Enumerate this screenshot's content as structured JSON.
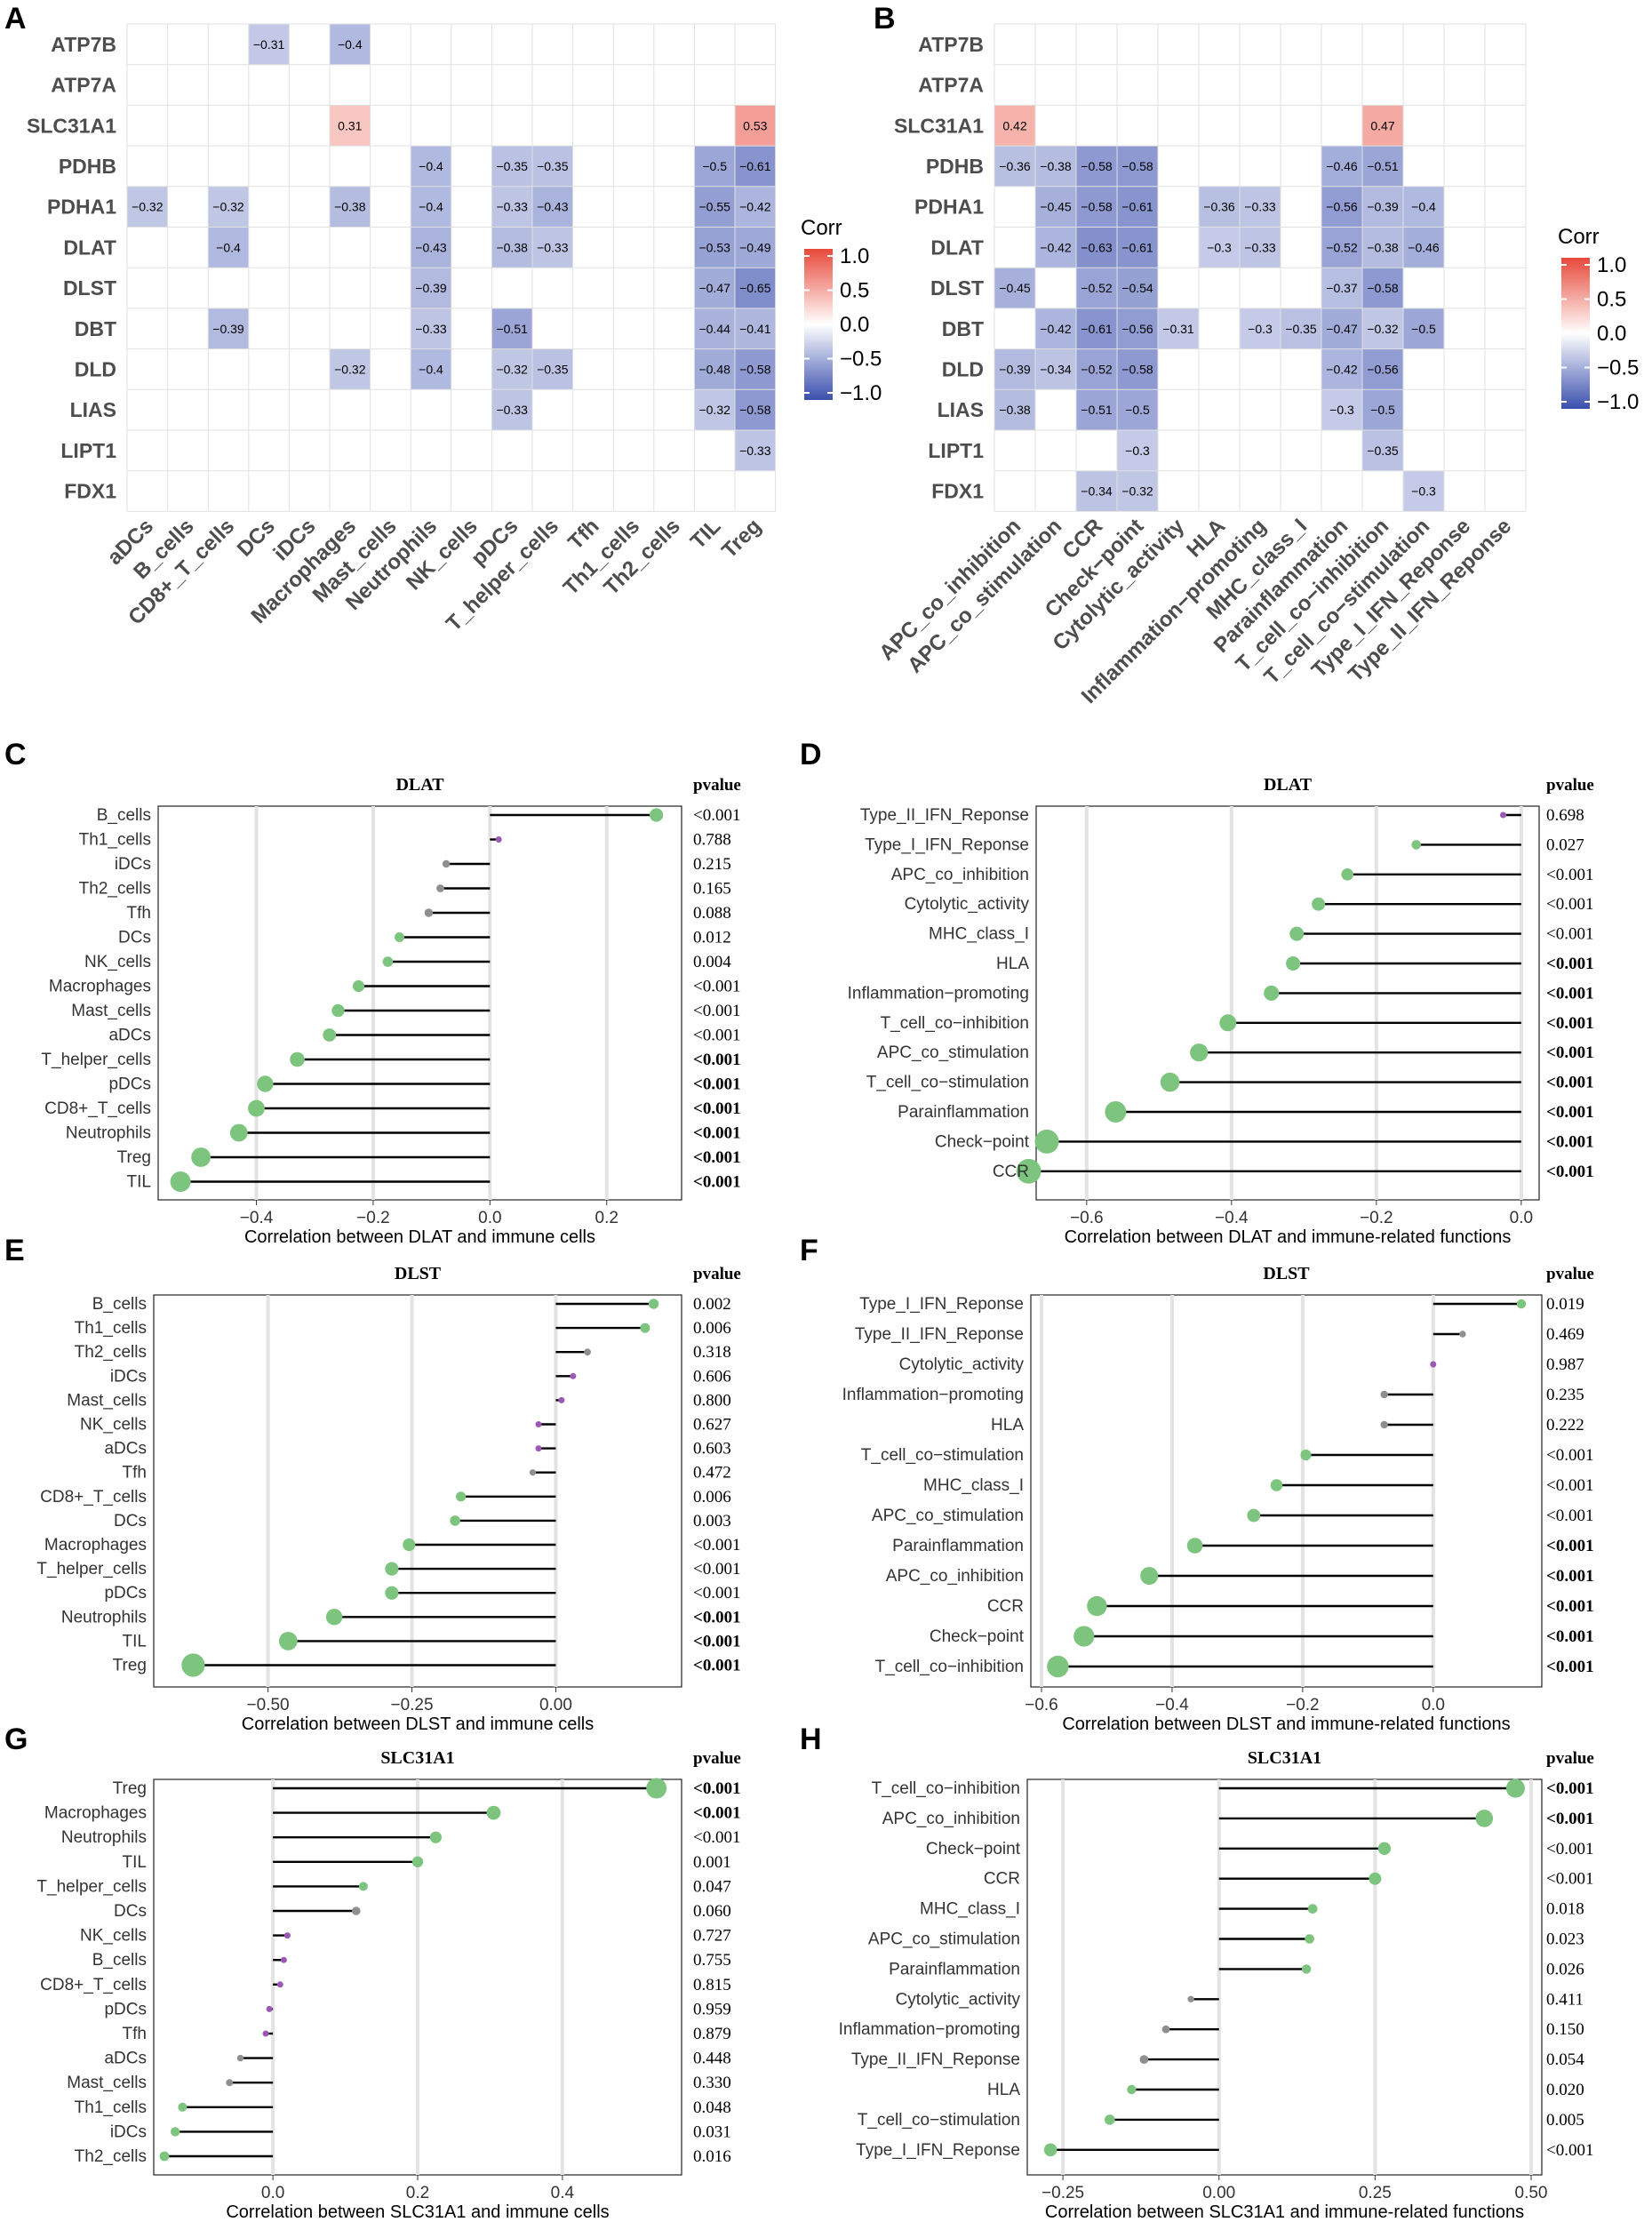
{
  "chart_data": [
    {
      "panel": "A",
      "type": "heatmap",
      "rows": [
        "ATP7B",
        "ATP7A",
        "SLC31A1",
        "PDHB",
        "PDHA1",
        "DLAT",
        "DLST",
        "DBT",
        "DLD",
        "LIAS",
        "LIPT1",
        "FDX1"
      ],
      "columns": [
        "aDCs",
        "B_cells",
        "CD8+_T_cells",
        "DCs",
        "iDCs",
        "Macrophages",
        "Mast_cells",
        "Neutrophils",
        "NK_cells",
        "pDCs",
        "T_helper_cells",
        "Tfh",
        "Th1_cells",
        "Th2_cells",
        "TIL",
        "Treg"
      ],
      "values": [
        [
          null,
          null,
          null,
          -0.31,
          null,
          -0.4,
          null,
          null,
          null,
          null,
          null,
          null,
          null,
          null,
          null,
          null
        ],
        [
          null,
          null,
          null,
          null,
          null,
          null,
          null,
          null,
          null,
          null,
          null,
          null,
          null,
          null,
          null,
          null
        ],
        [
          null,
          null,
          null,
          null,
          null,
          0.31,
          null,
          null,
          null,
          null,
          null,
          null,
          null,
          null,
          null,
          0.53
        ],
        [
          null,
          null,
          null,
          null,
          null,
          null,
          null,
          -0.4,
          null,
          -0.35,
          -0.35,
          null,
          null,
          null,
          -0.5,
          -0.61
        ],
        [
          -0.32,
          null,
          -0.32,
          null,
          null,
          -0.38,
          null,
          -0.4,
          null,
          -0.33,
          -0.43,
          null,
          null,
          null,
          -0.55,
          -0.42
        ],
        [
          null,
          null,
          -0.4,
          null,
          null,
          null,
          null,
          -0.43,
          null,
          -0.38,
          -0.33,
          null,
          null,
          null,
          -0.53,
          -0.49
        ],
        [
          null,
          null,
          null,
          null,
          null,
          null,
          null,
          -0.39,
          null,
          null,
          null,
          null,
          null,
          null,
          -0.47,
          -0.65
        ],
        [
          null,
          null,
          -0.39,
          null,
          null,
          null,
          null,
          -0.33,
          null,
          -0.51,
          null,
          null,
          null,
          null,
          -0.44,
          -0.41
        ],
        [
          null,
          null,
          null,
          null,
          null,
          -0.32,
          null,
          -0.4,
          null,
          -0.32,
          -0.35,
          null,
          null,
          null,
          -0.48,
          -0.58
        ],
        [
          null,
          null,
          null,
          null,
          null,
          null,
          null,
          null,
          null,
          -0.33,
          null,
          null,
          null,
          null,
          -0.32,
          -0.58
        ],
        [
          null,
          null,
          null,
          null,
          null,
          null,
          null,
          null,
          null,
          null,
          null,
          null,
          null,
          null,
          null,
          -0.33
        ],
        [
          null,
          null,
          null,
          null,
          null,
          null,
          null,
          null,
          null,
          null,
          null,
          null,
          null,
          null,
          null,
          null
        ]
      ],
      "legend_title": "Corr",
      "legend_ticks": [
        "1.0",
        "0.5",
        "0.0",
        "−0.5",
        "−1.0"
      ],
      "colors": {
        "pos": "#e8493a",
        "mid": "#ffffff",
        "neg": "#3a4fae"
      }
    },
    {
      "panel": "B",
      "type": "heatmap",
      "rows": [
        "ATP7B",
        "ATP7A",
        "SLC31A1",
        "PDHB",
        "PDHA1",
        "DLAT",
        "DLST",
        "DBT",
        "DLD",
        "LIAS",
        "LIPT1",
        "FDX1"
      ],
      "columns": [
        "APC_co_inhibition",
        "APC_co_stimulation",
        "CCR",
        "Check−point",
        "Cytolytic_activity",
        "HLA",
        "Inflammation−promoting",
        "MHC_class_I",
        "Parainflammation",
        "T_cell_co−inhibition",
        "T_cell_co−stimulation",
        "Type_I_IFN_Reponse",
        "Type_II_IFN_Reponse"
      ],
      "values": [
        [
          null,
          null,
          null,
          null,
          null,
          null,
          null,
          null,
          null,
          null,
          null,
          null,
          null
        ],
        [
          null,
          null,
          null,
          null,
          null,
          null,
          null,
          null,
          null,
          null,
          null,
          null,
          null
        ],
        [
          0.42,
          null,
          null,
          null,
          null,
          null,
          null,
          null,
          null,
          0.47,
          null,
          null,
          null
        ],
        [
          -0.36,
          -0.38,
          -0.58,
          -0.58,
          null,
          null,
          null,
          null,
          -0.46,
          -0.51,
          null,
          null,
          null
        ],
        [
          null,
          -0.45,
          -0.58,
          -0.61,
          null,
          -0.36,
          -0.33,
          null,
          -0.56,
          -0.39,
          -0.4,
          null,
          null
        ],
        [
          null,
          -0.42,
          -0.63,
          -0.61,
          null,
          -0.3,
          -0.33,
          null,
          -0.52,
          -0.38,
          -0.46,
          null,
          null
        ],
        [
          -0.45,
          null,
          -0.52,
          -0.54,
          null,
          null,
          null,
          null,
          -0.37,
          -0.58,
          null,
          null,
          null
        ],
        [
          null,
          -0.42,
          -0.61,
          -0.56,
          -0.31,
          null,
          -0.3,
          -0.35,
          -0.47,
          -0.32,
          -0.5,
          null,
          null
        ],
        [
          -0.39,
          -0.34,
          -0.52,
          -0.58,
          null,
          null,
          null,
          null,
          -0.42,
          -0.56,
          null,
          null,
          null
        ],
        [
          -0.38,
          null,
          -0.51,
          -0.5,
          null,
          null,
          null,
          null,
          -0.3,
          -0.5,
          null,
          null,
          null
        ],
        [
          null,
          null,
          null,
          -0.3,
          null,
          null,
          null,
          null,
          null,
          -0.35,
          null,
          null,
          null
        ],
        [
          null,
          null,
          -0.34,
          -0.32,
          null,
          null,
          null,
          null,
          null,
          null,
          -0.3,
          null,
          null
        ]
      ],
      "legend_title": "Corr",
      "legend_ticks": [
        "1.0",
        "0.5",
        "0.0",
        "−0.5",
        "−1.0"
      ],
      "colors": {
        "pos": "#e8493a",
        "mid": "#ffffff",
        "neg": "#3a4fae"
      }
    },
    {
      "panel": "C",
      "type": "scatter",
      "title": "DLAT",
      "xlabel": "Correlation between DLAT and immune cells",
      "pvalue_header": "pvalue",
      "xlim": [
        -0.55,
        0.31
      ],
      "xticks": [
        -0.4,
        -0.2,
        0.0,
        0.2
      ],
      "xtick_labels": [
        "−0.4",
        "−0.2",
        "0.0",
        "0.2"
      ],
      "labels": [
        "B_cells",
        "Th1_cells",
        "iDCs",
        "Th2_cells",
        "Tfh",
        "DCs",
        "NK_cells",
        "Macrophages",
        "Mast_cells",
        "aDCs",
        "T_helper_cells",
        "pDCs",
        "CD8+_T_cells",
        "Neutrophils",
        "Treg",
        "TIL"
      ],
      "values": [
        0.285,
        0.015,
        -0.075,
        -0.085,
        -0.105,
        -0.155,
        -0.175,
        -0.225,
        -0.26,
        -0.275,
        -0.33,
        -0.385,
        -0.4,
        -0.43,
        -0.495,
        -0.53
      ],
      "pvalues": [
        "<0.001",
        "0.788",
        "0.215",
        "0.165",
        "0.088",
        "0.012",
        "0.004",
        "<0.001",
        "<0.001",
        "<0.001",
        "<0.001",
        "<0.001",
        "<0.001",
        "<0.001",
        "<0.001",
        "<0.001"
      ],
      "pbold": [
        false,
        false,
        false,
        false,
        false,
        false,
        false,
        false,
        false,
        false,
        true,
        true,
        true,
        true,
        true,
        true
      ]
    },
    {
      "panel": "D",
      "type": "scatter",
      "title": "DLAT",
      "xlabel": "Correlation between DLAT and immune-related functions",
      "pvalue_header": "pvalue",
      "xlim": [
        -0.655,
        0.01
      ],
      "xticks": [
        -0.6,
        -0.4,
        -0.2,
        0.0
      ],
      "xtick_labels": [
        "−0.6",
        "−0.4",
        "−0.2",
        "0.0"
      ],
      "labels": [
        "Type_II_IFN_Reponse",
        "Type_I_IFN_Reponse",
        "APC_co_inhibition",
        "Cytolytic_activity",
        "MHC_class_I",
        "HLA",
        "Inflammation−promoting",
        "T_cell_co−inhibition",
        "APC_co_stimulation",
        "T_cell_co−stimulation",
        "Parainflammation",
        "Check−point",
        "CCR"
      ],
      "values": [
        -0.025,
        -0.145,
        -0.24,
        -0.28,
        -0.31,
        -0.315,
        -0.345,
        -0.405,
        -0.445,
        -0.485,
        -0.56,
        -0.655,
        -0.68
      ],
      "pvalues": [
        "0.698",
        "0.027",
        "<0.001",
        "<0.001",
        "<0.001",
        "<0.001",
        "<0.001",
        "<0.001",
        "<0.001",
        "<0.001",
        "<0.001",
        "<0.001",
        "<0.001"
      ],
      "pbold": [
        false,
        false,
        false,
        false,
        false,
        true,
        true,
        true,
        true,
        true,
        true,
        true,
        true
      ]
    },
    {
      "panel": "E",
      "type": "scatter",
      "title": "DLST",
      "xlabel": "Correlation between DLST and immune cells",
      "pvalue_header": "pvalue",
      "xlim": [
        -0.68,
        0.2
      ],
      "xticks": [
        -0.5,
        -0.25,
        0.0
      ],
      "xtick_labels": [
        "−0.50",
        "−0.25",
        "0.00"
      ],
      "labels": [
        "B_cells",
        "Th1_cells",
        "Th2_cells",
        "iDCs",
        "Mast_cells",
        "NK_cells",
        "aDCs",
        "Tfh",
        "CD8+_T_cells",
        "DCs",
        "Macrophages",
        "T_helper_cells",
        "pDCs",
        "Neutrophils",
        "TIL",
        "Treg"
      ],
      "values": [
        0.17,
        0.155,
        0.055,
        0.03,
        0.01,
        -0.03,
        -0.03,
        -0.04,
        -0.165,
        -0.175,
        -0.255,
        -0.285,
        -0.285,
        -0.385,
        -0.465,
        -0.63
      ],
      "pvalues": [
        "0.002",
        "0.006",
        "0.318",
        "0.606",
        "0.800",
        "0.627",
        "0.603",
        "0.472",
        "0.006",
        "0.003",
        "<0.001",
        "<0.001",
        "<0.001",
        "<0.001",
        "<0.001",
        "<0.001"
      ],
      "pbold": [
        false,
        false,
        false,
        false,
        false,
        false,
        false,
        false,
        false,
        false,
        false,
        false,
        false,
        true,
        true,
        true
      ]
    },
    {
      "panel": "F",
      "type": "scatter",
      "title": "DLST",
      "xlabel": "Correlation between DLST and immune-related functions",
      "pvalue_header": "pvalue",
      "xlim": [
        -0.6,
        0.15
      ],
      "xticks": [
        -0.6,
        -0.4,
        -0.2,
        0.0
      ],
      "xtick_labels": [
        "−0.6",
        "−0.4",
        "−0.2",
        "0.0"
      ],
      "labels": [
        "Type_I_IFN_Reponse",
        "Type_II_IFN_Reponse",
        "Cytolytic_activity",
        "Inflammation−promoting",
        "HLA",
        "T_cell_co−stimulation",
        "MHC_class_I",
        "APC_co_stimulation",
        "Parainflammation",
        "APC_co_inhibition",
        "CCR",
        "Check−point",
        "T_cell_co−inhibition"
      ],
      "values": [
        0.135,
        0.045,
        0.0,
        -0.075,
        -0.075,
        -0.195,
        -0.24,
        -0.275,
        -0.365,
        -0.435,
        -0.515,
        -0.535,
        -0.575
      ],
      "pvalues": [
        "0.019",
        "0.469",
        "0.987",
        "0.235",
        "0.222",
        "<0.001",
        "<0.001",
        "<0.001",
        "<0.001",
        "<0.001",
        "<0.001",
        "<0.001",
        "<0.001"
      ],
      "pbold": [
        false,
        false,
        false,
        false,
        false,
        false,
        false,
        false,
        true,
        true,
        true,
        true,
        true
      ]
    },
    {
      "panel": "G",
      "type": "scatter",
      "title": "SLC31A1",
      "xlabel": "Correlation between SLC31A1 and immune cells",
      "pvalue_header": "pvalue",
      "xlim": [
        -0.15,
        0.55
      ],
      "xticks": [
        0.0,
        0.2,
        0.4
      ],
      "xtick_labels": [
        "0.0",
        "0.2",
        "0.4"
      ],
      "labels": [
        "Treg",
        "Macrophages",
        "Neutrophils",
        "TIL",
        "T_helper_cells",
        "DCs",
        "NK_cells",
        "B_cells",
        "CD8+_T_cells",
        "pDCs",
        "Tfh",
        "aDCs",
        "Mast_cells",
        "Th1_cells",
        "iDCs",
        "Th2_cells"
      ],
      "values": [
        0.53,
        0.305,
        0.225,
        0.2,
        0.125,
        0.115,
        0.02,
        0.015,
        0.01,
        -0.005,
        -0.01,
        -0.045,
        -0.06,
        -0.125,
        -0.135,
        -0.15
      ],
      "pvalues": [
        "<0.001",
        "<0.001",
        "<0.001",
        "0.001",
        "0.047",
        "0.060",
        "0.727",
        "0.755",
        "0.815",
        "0.959",
        "0.879",
        "0.448",
        "0.330",
        "0.048",
        "0.031",
        "0.016"
      ],
      "pbold": [
        true,
        true,
        false,
        false,
        false,
        false,
        false,
        false,
        false,
        false,
        false,
        false,
        false,
        false,
        false,
        false
      ]
    },
    {
      "panel": "H",
      "type": "scatter",
      "title": "SLC31A1",
      "xlabel": "Correlation between SLC31A1 and immune-related functions",
      "pvalue_header": "pvalue",
      "xlim": [
        -0.29,
        0.5
      ],
      "xticks": [
        -0.25,
        0.0,
        0.25,
        0.5
      ],
      "xtick_labels": [
        "−0.25",
        "0.00",
        "0.25",
        "0.50"
      ],
      "labels": [
        "T_cell_co−inhibition",
        "APC_co_inhibition",
        "Check−point",
        "CCR",
        "MHC_class_I",
        "APC_co_stimulation",
        "Parainflammation",
        "Cytolytic_activity",
        "Inflammation−promoting",
        "Type_II_IFN_Reponse",
        "HLA",
        "T_cell_co−stimulation",
        "Type_I_IFN_Reponse"
      ],
      "values": [
        0.475,
        0.425,
        0.265,
        0.25,
        0.15,
        0.145,
        0.14,
        -0.045,
        -0.085,
        -0.12,
        -0.14,
        -0.175,
        -0.27
      ],
      "pvalues": [
        "<0.001",
        "<0.001",
        "<0.001",
        "<0.001",
        "0.018",
        "0.023",
        "0.026",
        "0.411",
        "0.150",
        "0.054",
        "0.020",
        "0.005",
        "<0.001"
      ],
      "pbold": [
        true,
        true,
        false,
        false,
        false,
        false,
        false,
        false,
        false,
        false,
        false,
        false,
        false
      ]
    }
  ],
  "colors": {
    "sig_point": "#7dc47f",
    "nonsig_point": "#8f8f8f",
    "small_point": "#9b59b6",
    "grid": "#e3e3e3",
    "stem": "#000000"
  }
}
